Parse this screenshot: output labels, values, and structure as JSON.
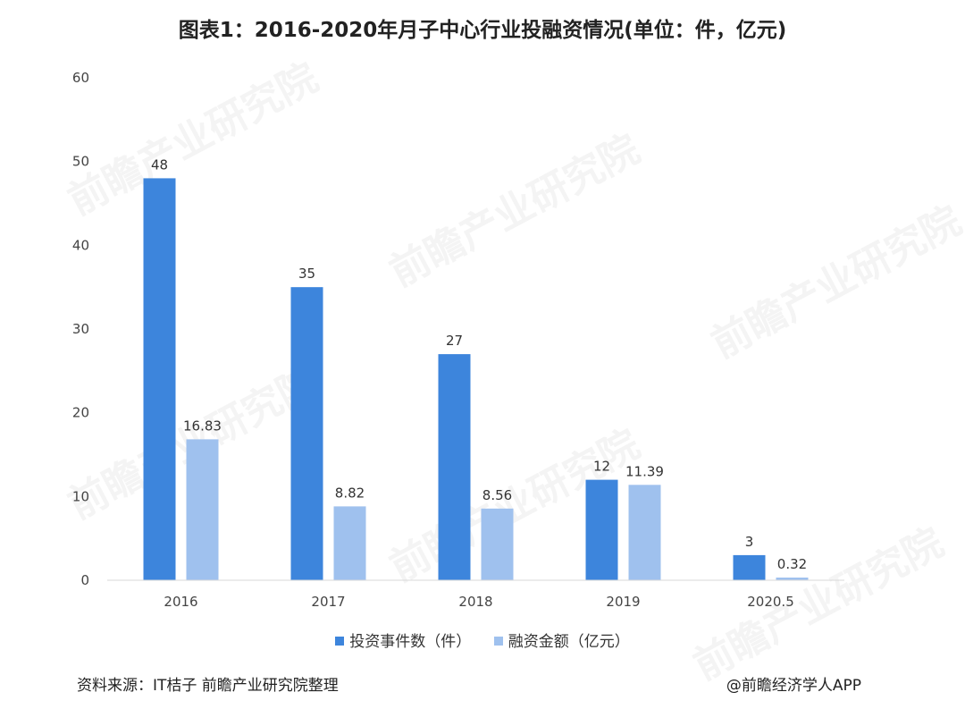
{
  "chart_data": {
    "type": "bar",
    "title": "图表1：2016-2020年月子中心行业投融资情况(单位：件，亿元)",
    "categories": [
      "2016",
      "2017",
      "2018",
      "2019",
      "2020.5"
    ],
    "series": [
      {
        "name": "投资事件数（件）",
        "values": [
          48,
          35,
          27,
          12,
          3
        ],
        "labels": [
          "48",
          "35",
          "27",
          "12",
          "3"
        ],
        "color": "#3d85dc"
      },
      {
        "name": "融资金额（亿元）",
        "values": [
          16.83,
          8.82,
          8.56,
          11.39,
          0.32
        ],
        "labels": [
          "16.83",
          "8.82",
          "8.56",
          "11.39",
          "0.32"
        ],
        "color": "#9fc1ee"
      }
    ],
    "yticks": [
      "0",
      "10",
      "20",
      "30",
      "40",
      "50",
      "60"
    ],
    "ylim": [
      0,
      60
    ],
    "grid": false,
    "legend_position": "bottom"
  },
  "footer": {
    "source": "资料来源：IT桔子 前瞻产业研究院整理",
    "credit": "@前瞻经济学人APP"
  },
  "watermark_text": "前瞻产业研究院"
}
